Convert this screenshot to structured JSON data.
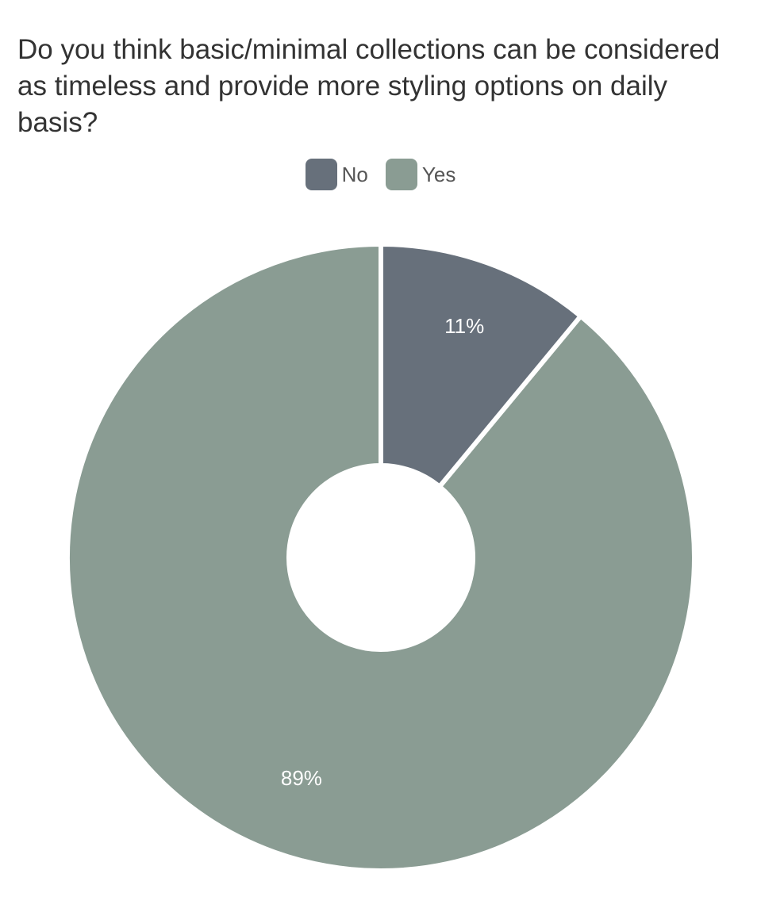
{
  "chart_data": {
    "type": "pie",
    "title": "Do you think basic/minimal collections can be considered as timeless and provide more styling options on daily basis?",
    "categories": [
      "No",
      "Yes"
    ],
    "values": [
      11,
      89
    ],
    "labels": [
      "11%",
      "89%"
    ],
    "colors": [
      "#67707b",
      "#8a9c93"
    ],
    "legend": "top-center",
    "donut": true
  }
}
